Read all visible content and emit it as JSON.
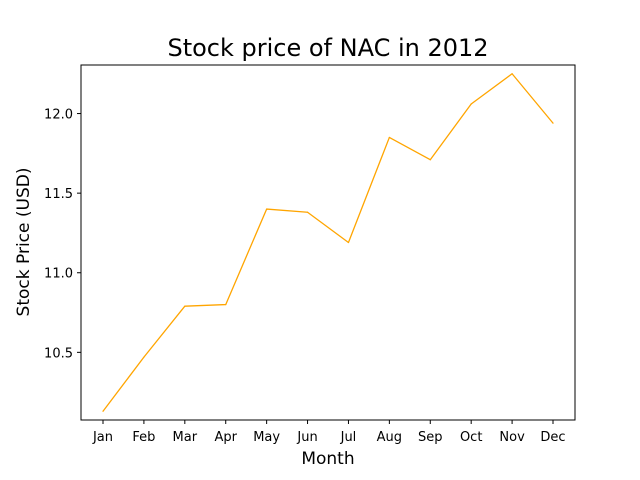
{
  "chart_data": {
    "type": "line",
    "title": "Stock price of NAC in 2012",
    "xlabel": "Month",
    "ylabel": "Stock Price (USD)",
    "categories": [
      "Jan",
      "Feb",
      "Mar",
      "Apr",
      "May",
      "Jun",
      "Jul",
      "Aug",
      "Sep",
      "Oct",
      "Nov",
      "Dec"
    ],
    "series": [
      {
        "values": [
          10.13,
          10.47,
          10.79,
          10.8,
          11.4,
          11.38,
          11.19,
          11.85,
          11.71,
          12.06,
          12.25,
          11.94
        ],
        "color": "#ffa500"
      }
    ],
    "yticks": [
      "10.5",
      "11.0",
      "11.5",
      "12.0"
    ],
    "ylim": [
      10.075,
      12.305
    ],
    "grid": false,
    "legend": "none"
  }
}
